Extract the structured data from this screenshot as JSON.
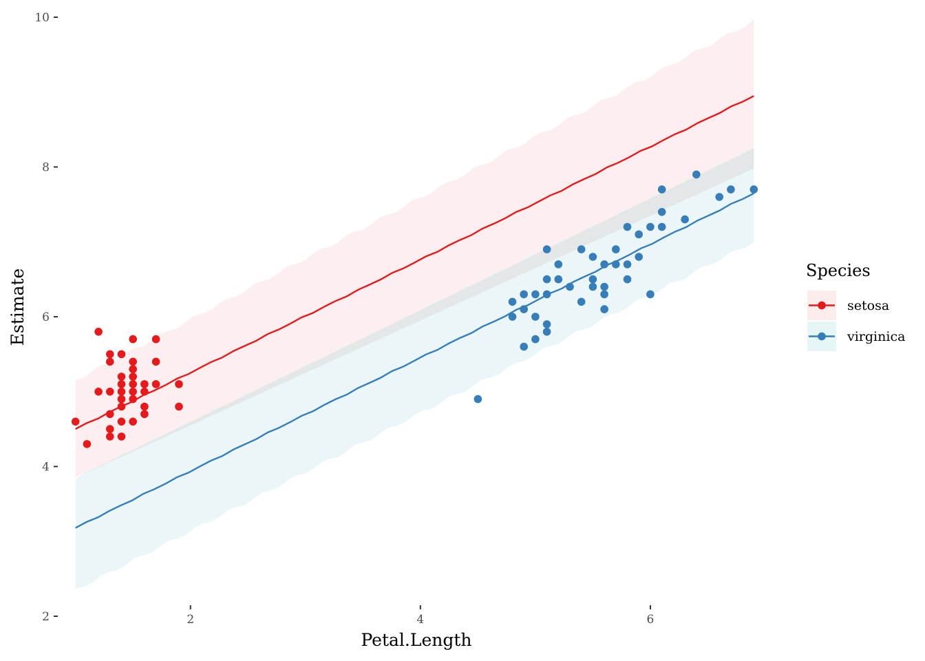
{
  "chart_data": {
    "type": "scatter",
    "title": "",
    "xlabel": "Petal.Length",
    "ylabel": "Estimate",
    "xlim": [
      0.93,
      7.0
    ],
    "ylim": [
      2,
      10
    ],
    "x_ticks": [
      2,
      4,
      6
    ],
    "y_ticks": [
      2,
      4,
      6,
      8,
      10
    ],
    "grid": false,
    "legend": {
      "title": "Species",
      "placement": "right"
    },
    "series": [
      {
        "name": "setosa",
        "color": "#E41A1C",
        "ribbon_color": "#FDECEC",
        "fit_line": [
          [
            1.0,
            4.5
          ],
          [
            6.9,
            8.95
          ]
        ],
        "ribbon": [
          [
            1.0,
            3.85,
            5.15
          ],
          [
            6.9,
            7.98,
            9.95
          ]
        ],
        "points": [
          [
            1.0,
            4.6
          ],
          [
            1.1,
            4.3
          ],
          [
            1.2,
            5.8
          ],
          [
            1.2,
            5.0
          ],
          [
            1.3,
            5.5
          ],
          [
            1.3,
            5.4
          ],
          [
            1.3,
            5.0
          ],
          [
            1.3,
            4.7
          ],
          [
            1.3,
            4.5
          ],
          [
            1.3,
            4.4
          ],
          [
            1.4,
            5.5
          ],
          [
            1.4,
            5.2
          ],
          [
            1.4,
            5.1
          ],
          [
            1.4,
            5.0
          ],
          [
            1.4,
            4.9
          ],
          [
            1.4,
            4.8
          ],
          [
            1.4,
            4.6
          ],
          [
            1.4,
            4.4
          ],
          [
            1.5,
            5.7
          ],
          [
            1.5,
            5.4
          ],
          [
            1.5,
            5.3
          ],
          [
            1.5,
            5.2
          ],
          [
            1.5,
            5.1
          ],
          [
            1.5,
            5.0
          ],
          [
            1.5,
            4.9
          ],
          [
            1.5,
            4.6
          ],
          [
            1.6,
            5.1
          ],
          [
            1.6,
            5.0
          ],
          [
            1.6,
            4.8
          ],
          [
            1.6,
            4.7
          ],
          [
            1.7,
            5.7
          ],
          [
            1.7,
            5.4
          ],
          [
            1.7,
            5.1
          ],
          [
            1.9,
            5.1
          ],
          [
            1.9,
            4.8
          ]
        ]
      },
      {
        "name": "virginica",
        "color": "#377EB8",
        "ribbon_color": "#E6F5F6",
        "fit_line": [
          [
            1.0,
            3.18
          ],
          [
            6.9,
            7.65
          ]
        ],
        "ribbon": [
          [
            1.0,
            2.35,
            3.85
          ],
          [
            6.9,
            7.0,
            8.25
          ]
        ],
        "points": [
          [
            4.5,
            4.9
          ],
          [
            4.8,
            6.2
          ],
          [
            4.8,
            6.0
          ],
          [
            4.9,
            6.3
          ],
          [
            4.9,
            6.1
          ],
          [
            4.9,
            5.6
          ],
          [
            5.0,
            6.3
          ],
          [
            5.0,
            6.0
          ],
          [
            5.0,
            5.7
          ],
          [
            5.1,
            6.9
          ],
          [
            5.1,
            6.5
          ],
          [
            5.1,
            6.3
          ],
          [
            5.1,
            5.9
          ],
          [
            5.1,
            5.8
          ],
          [
            5.2,
            6.7
          ],
          [
            5.2,
            6.5
          ],
          [
            5.3,
            6.4
          ],
          [
            5.4,
            6.9
          ],
          [
            5.4,
            6.2
          ],
          [
            5.5,
            6.8
          ],
          [
            5.5,
            6.5
          ],
          [
            5.5,
            6.4
          ],
          [
            5.6,
            6.7
          ],
          [
            5.6,
            6.4
          ],
          [
            5.6,
            6.3
          ],
          [
            5.6,
            6.1
          ],
          [
            5.7,
            6.9
          ],
          [
            5.7,
            6.7
          ],
          [
            5.8,
            7.2
          ],
          [
            5.8,
            6.7
          ],
          [
            5.8,
            6.5
          ],
          [
            5.9,
            7.1
          ],
          [
            5.9,
            6.8
          ],
          [
            6.0,
            7.2
          ],
          [
            6.0,
            6.3
          ],
          [
            6.1,
            7.7
          ],
          [
            6.1,
            7.4
          ],
          [
            6.1,
            7.2
          ],
          [
            6.3,
            7.3
          ],
          [
            6.4,
            7.9
          ],
          [
            6.6,
            7.6
          ],
          [
            6.7,
            7.7
          ],
          [
            6.9,
            7.7
          ]
        ]
      }
    ]
  }
}
